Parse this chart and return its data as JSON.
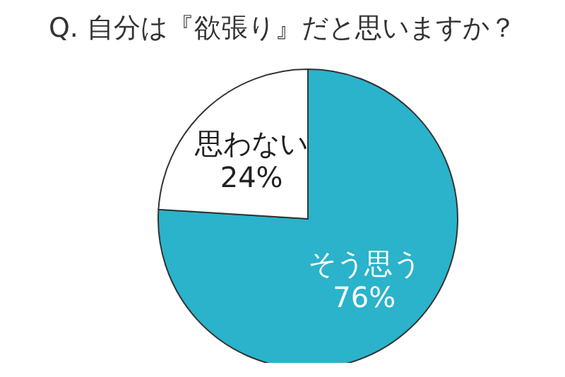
{
  "chart_data": {
    "type": "pie",
    "title": "Q. 自分は『欲張り』だと思いますか？",
    "categories": [
      "そう思う",
      "思わない"
    ],
    "values": [
      76,
      24
    ],
    "colors": [
      "#2ab3cb",
      "#ffffff"
    ],
    "value_labels": [
      "76%",
      "24%"
    ]
  }
}
